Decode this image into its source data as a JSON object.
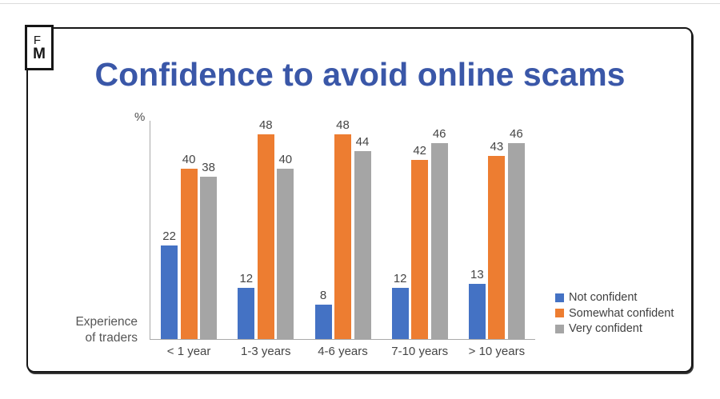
{
  "logo": {
    "line1": "F",
    "line2": "M"
  },
  "title": "Confidence to avoid online scams",
  "axis": {
    "percent_label": "%",
    "x_axis_label_line1": "Experience",
    "x_axis_label_line2": "of traders"
  },
  "chart_data": {
    "type": "bar",
    "title": "Confidence to avoid online scams",
    "xlabel": "Experience of traders",
    "ylabel": "%",
    "categories": [
      "< 1 year",
      "1-3 years",
      "4-6 years",
      "7-10 years",
      "> 10 years"
    ],
    "series": [
      {
        "name": "Not confident",
        "color": "#4472C4",
        "values": [
          22,
          12,
          8,
          12,
          13
        ]
      },
      {
        "name": "Somewhat confident",
        "color": "#ED7D31",
        "values": [
          40,
          48,
          48,
          42,
          43
        ]
      },
      {
        "name": "Very confident",
        "color": "#A5A5A5",
        "values": [
          38,
          40,
          44,
          46,
          46
        ]
      }
    ],
    "ylim": [
      0,
      50
    ],
    "grid": false,
    "data_labels": true,
    "legend_position": "bottom-right"
  },
  "colors": {
    "title_blue": "#3A57A8",
    "bar_blue": "#4472C4",
    "bar_orange": "#ED7D31",
    "bar_gray": "#A5A5A5",
    "axis_line": "#A9A9A9",
    "label_text": "#454545"
  }
}
